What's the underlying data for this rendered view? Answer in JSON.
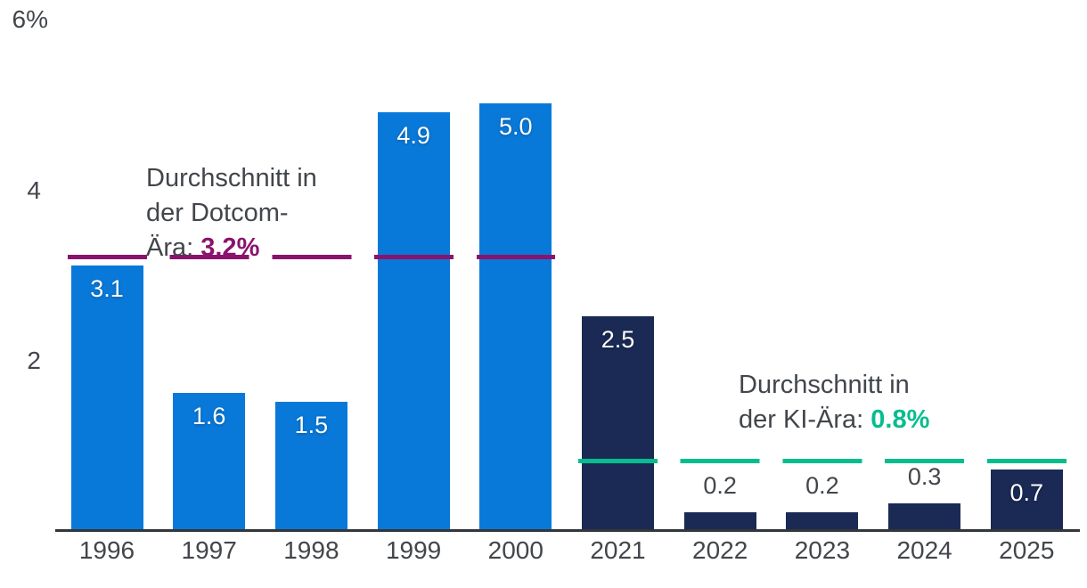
{
  "chart_data": {
    "type": "bar",
    "title": "",
    "unit": "%",
    "categories": [
      "1996",
      "1997",
      "1998",
      "1999",
      "2000",
      "2021",
      "2022",
      "2023",
      "2024",
      "2025"
    ],
    "values": [
      3.1,
      1.6,
      1.5,
      4.9,
      5.0,
      2.5,
      0.2,
      0.2,
      0.3,
      0.7
    ],
    "value_labels": [
      "3.1",
      "1.6",
      "1.5",
      "4.9",
      "5.0",
      "2.5",
      "0.2",
      "0.2",
      "0.3",
      "0.7"
    ],
    "eras": [
      "dotcom",
      "dotcom",
      "dotcom",
      "dotcom",
      "dotcom",
      "ai",
      "ai",
      "ai",
      "ai",
      "ai"
    ],
    "era_colors": {
      "dotcom": "#0979d9",
      "ai": "#1a2a55"
    },
    "ylim": [
      0,
      6
    ],
    "yticks": [
      {
        "value": 6,
        "label": "6%"
      },
      {
        "value": 4,
        "label": "4"
      },
      {
        "value": 2,
        "label": "2"
      }
    ],
    "grid": "off",
    "legend": "none",
    "reference_lines": [
      {
        "era": "dotcom",
        "value": 3.2,
        "color": "#8a136d",
        "label": "Durchschnitt in der Dotcom-Ära: 3.2%"
      },
      {
        "era": "ai",
        "value": 0.8,
        "color": "#05bd8d",
        "label": "Durchschnitt in der KI-Ära: 0.8%"
      }
    ],
    "annotations": [
      {
        "id": "dotcom",
        "text_lines": [
          "Durchschnitt in",
          "der Dotcom-"
        ],
        "value_prefix": "Ära: ",
        "value_text": "3.2%",
        "value_color": "#8a136d"
      },
      {
        "id": "ai",
        "text_lines": [
          "Durchschnitt in"
        ],
        "value_prefix": "der KI-Ära: ",
        "value_text": "0.8%",
        "value_color": "#05bd8d"
      }
    ],
    "colors": {
      "text": "#42464b",
      "axis": "#33363a",
      "inside_label": "#ffffff"
    }
  }
}
